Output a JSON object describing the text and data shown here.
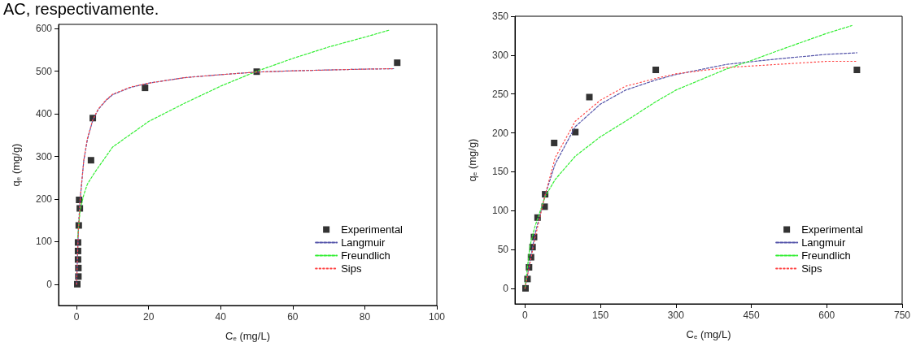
{
  "chart_data": [
    {
      "type": "scatter",
      "xlabel": "C$_{e}$ (mg/L)",
      "ylabel": "q$_{e}$ (mg/g)",
      "annotations": [
        "AC, respectivamente."
      ],
      "xlim": [
        -5,
        100
      ],
      "xticks": [
        0,
        20,
        40,
        60,
        80,
        100
      ],
      "ylim": [
        -50,
        610
      ],
      "yticks": [
        0,
        100,
        200,
        300,
        400,
        500,
        600
      ],
      "grid": false,
      "legend": "bottom right",
      "series": [
        {
          "name": "Experimental",
          "type": "scatter",
          "color": "#000000",
          "marker": "square",
          "x": [
            0.2,
            0.5,
            0.5,
            0.4,
            0.4,
            0.4,
            0.6,
            0.9,
            0.7,
            4,
            4.5,
            19,
            50,
            89
          ],
          "values": [
            0,
            18,
            38,
            58,
            78,
            98,
            138,
            178,
            198,
            291,
            390,
            461,
            499,
            520
          ]
        },
        {
          "name": "Langmuir",
          "type": "line",
          "color": "#5555aa",
          "marker": "none",
          "line_style": "dashed",
          "x": [
            0,
            0.5,
            1,
            2,
            3,
            4.5,
            6,
            8,
            10,
            15,
            20,
            30,
            40,
            50,
            60,
            70,
            80,
            88
          ],
          "values": [
            0,
            130,
            200,
            290,
            340,
            385,
            410,
            430,
            445,
            462,
            472,
            485,
            492,
            498,
            501,
            503,
            505,
            506
          ]
        },
        {
          "name": "Freundlich",
          "type": "line",
          "color": "#33ee33",
          "marker": "none",
          "line_style": "dashed",
          "x": [
            0.3,
            1,
            2,
            3,
            5,
            10,
            20,
            30,
            40,
            50,
            60,
            70,
            80,
            87
          ],
          "values": [
            110,
            175,
            210,
            235,
            262,
            322,
            382,
            425,
            465,
            500,
            530,
            557,
            580,
            597
          ]
        },
        {
          "name": "Sips",
          "type": "line",
          "color": "#ff4444",
          "marker": "none",
          "line_style": "dotted",
          "x": [
            0,
            0.5,
            1,
            2,
            3,
            4.5,
            6,
            8,
            10,
            15,
            20,
            30,
            40,
            50,
            60,
            70,
            80,
            88
          ],
          "values": [
            0,
            125,
            200,
            292,
            342,
            386,
            411,
            431,
            446,
            463,
            472,
            485,
            492,
            498,
            501,
            503,
            505,
            506
          ]
        }
      ]
    },
    {
      "type": "scatter",
      "xlabel": "C$_{e}$ (mg/L)",
      "ylabel": "q$_{e}$ (mg/g)",
      "xlim": [
        -20,
        750
      ],
      "xticks": [
        0,
        150,
        300,
        450,
        600,
        750
      ],
      "ylim": [
        -20,
        350
      ],
      "yticks": [
        0,
        50,
        100,
        150,
        200,
        250,
        300,
        350
      ],
      "grid": false,
      "legend": "bottom right",
      "series": [
        {
          "name": "Experimental",
          "type": "scatter",
          "color": "#000000",
          "marker": "square",
          "x": [
            1,
            5,
            8,
            12,
            15,
            18,
            25,
            39,
            40,
            58,
            100,
            128,
            260,
            660
          ],
          "values": [
            0,
            12,
            27,
            40,
            53,
            66,
            91,
            105,
            121,
            187,
            201,
            246,
            281,
            281
          ]
        },
        {
          "name": "Langmuir",
          "type": "line",
          "color": "#5555aa",
          "marker": "none",
          "line_style": "dashed",
          "x": [
            0,
            20,
            40,
            60,
            100,
            150,
            200,
            260,
            300,
            400,
            500,
            600,
            660
          ],
          "values": [
            0,
            70,
            120,
            160,
            208,
            237,
            255,
            268,
            275,
            288,
            295,
            301,
            303
          ]
        },
        {
          "name": "Freundlich",
          "type": "line",
          "color": "#33ee33",
          "marker": "none",
          "line_style": "dashed",
          "x": [
            0,
            10,
            20,
            40,
            60,
            100,
            150,
            200,
            260,
            300,
            400,
            450,
            500,
            600,
            650
          ],
          "values": [
            0,
            55,
            80,
            118,
            140,
            170,
            195,
            215,
            240,
            255,
            282,
            293,
            305,
            328,
            338
          ]
        },
        {
          "name": "Sips",
          "type": "line",
          "color": "#ff4444",
          "marker": "none",
          "line_style": "dotted",
          "x": [
            0,
            20,
            40,
            60,
            100,
            150,
            200,
            260,
            300,
            400,
            500,
            600,
            660
          ],
          "values": [
            0,
            65,
            120,
            168,
            215,
            242,
            260,
            270,
            276,
            284,
            288,
            292,
            292
          ]
        }
      ]
    }
  ]
}
